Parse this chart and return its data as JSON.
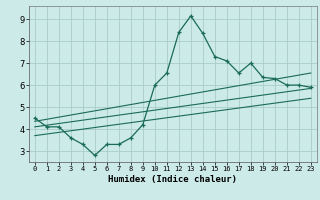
{
  "title": "",
  "xlabel": "Humidex (Indice chaleur)",
  "xlim": [
    -0.5,
    23.5
  ],
  "ylim": [
    2.5,
    9.6
  ],
  "yticks": [
    3,
    4,
    5,
    6,
    7,
    8,
    9
  ],
  "xticks": [
    0,
    1,
    2,
    3,
    4,
    5,
    6,
    7,
    8,
    9,
    10,
    11,
    12,
    13,
    14,
    15,
    16,
    17,
    18,
    19,
    20,
    21,
    22,
    23
  ],
  "bg_color": "#cceae8",
  "grid_color": "#aacccc",
  "line_color": "#1a6b5a",
  "main_x": [
    0,
    1,
    2,
    3,
    4,
    5,
    6,
    7,
    8,
    9,
    10,
    11,
    12,
    13,
    14,
    15,
    16,
    17,
    18,
    19,
    20,
    21,
    22,
    23
  ],
  "main_y": [
    4.5,
    4.1,
    4.1,
    3.6,
    3.3,
    2.8,
    3.3,
    3.3,
    3.6,
    4.2,
    6.0,
    6.55,
    8.4,
    9.15,
    8.35,
    7.3,
    7.1,
    6.55,
    7.0,
    6.35,
    6.3,
    6.0,
    6.0,
    5.9
  ],
  "trend1_x": [
    0,
    23
  ],
  "trend1_y": [
    4.1,
    5.85
  ],
  "trend2_x": [
    0,
    23
  ],
  "trend2_y": [
    3.7,
    5.4
  ],
  "trend3_x": [
    0,
    23
  ],
  "trend3_y": [
    4.35,
    6.55
  ]
}
